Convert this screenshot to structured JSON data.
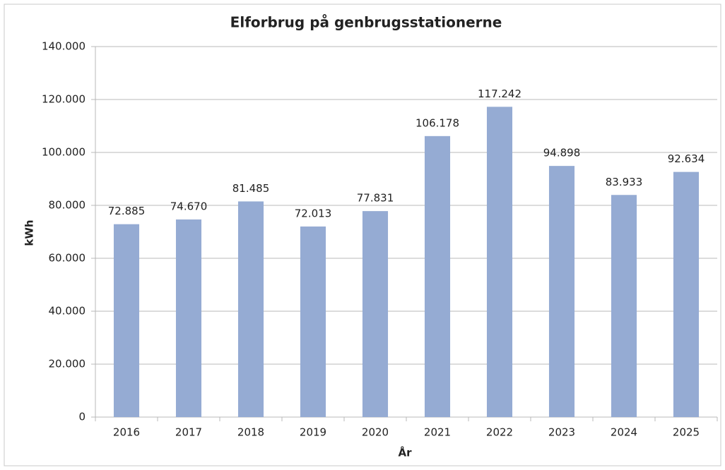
{
  "chart_data": {
    "type": "bar",
    "title": "Elforbrug på genbrugsstationerne",
    "x_label": "År",
    "y_label": "kWh",
    "categories": [
      "2016",
      "2017",
      "2018",
      "2019",
      "2020",
      "2021",
      "2022",
      "2023",
      "2024",
      "2025"
    ],
    "values": [
      72885,
      74670,
      81485,
      72013,
      77831,
      106178,
      117242,
      94898,
      83933,
      92634
    ],
    "value_labels": [
      "72.885",
      "74.670",
      "81.485",
      "72.013",
      "77.831",
      "106.178",
      "117.242",
      "94.898",
      "83.933",
      "92.634"
    ],
    "color": "#95abd3",
    "ylim": [
      0,
      140000
    ],
    "yticks": [
      0,
      {
        "value": 20000,
        "label": "20.000"
      },
      {
        "value": 40000,
        "label": "40.000"
      },
      {
        "value": 60000,
        "label": "60.000"
      },
      {
        "value": 80000,
        "label": "80.000"
      },
      {
        "value": 100000,
        "label": "100.000"
      },
      {
        "value": 120000,
        "label": "120.000"
      },
      {
        "value": 140000,
        "label": "140.000"
      }
    ],
    "grid": true
  }
}
